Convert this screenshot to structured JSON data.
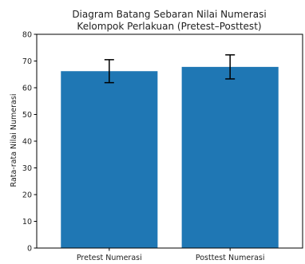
{
  "chart_data": {
    "type": "bar",
    "title_lines": [
      "Diagram Batang Sebaran Nilai Numerasi",
      "Kelompok Perlakuan (Pretest–Posttest)"
    ],
    "ylabel": "Rata-rata Nilai Numerasi",
    "xlabel": "",
    "categories": [
      "Pretest Numerasi",
      "Posttest Numerasi"
    ],
    "values": [
      66.2,
      67.8
    ],
    "error": [
      4.3,
      4.5
    ],
    "ylim": [
      0,
      80
    ],
    "yticks": [
      "0",
      "10",
      "20",
      "30",
      "40",
      "50",
      "60",
      "70",
      "80"
    ],
    "grid": false,
    "bar_color": "#1f77b4",
    "error_color": "#000000"
  }
}
